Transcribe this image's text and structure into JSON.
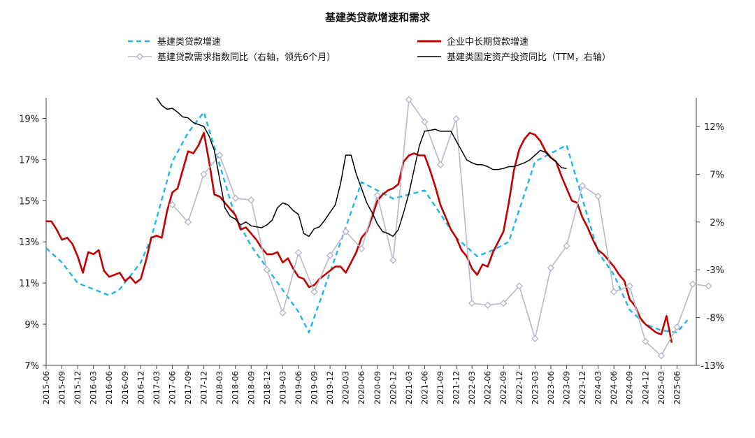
{
  "chart_data": {
    "type": "line",
    "title": "基建类贷款增速和需求",
    "y_left": {
      "ylim": [
        7,
        20
      ],
      "ticks": [
        "7%",
        "9%",
        "11%",
        "13%",
        "15%",
        "17%",
        "19%"
      ],
      "tick_values": [
        7,
        9,
        11,
        13,
        15,
        17,
        19
      ]
    },
    "y_right": {
      "ylim": [
        -13,
        15
      ],
      "ticks": [
        "-13%",
        "-8%",
        "-3%",
        "2%",
        "7%",
        "12%"
      ],
      "tick_values": [
        -13,
        -8,
        -3,
        2,
        7,
        12
      ]
    },
    "x_start": "2015-06",
    "x_ticks": [
      "2015-06",
      "2015-09",
      "2015-12",
      "2016-03",
      "2016-06",
      "2016-09",
      "2016-12",
      "2017-03",
      "2017-06",
      "2017-09",
      "2017-12",
      "2018-03",
      "2018-06",
      "2018-09",
      "2018-12",
      "2019-03",
      "2019-06",
      "2019-09",
      "2019-12",
      "2020-03",
      "2020-06",
      "2020-09",
      "2020-12",
      "2021-03",
      "2021-06",
      "2021-09",
      "2021-12",
      "2022-03",
      "2022-06",
      "2022-09",
      "2022-12",
      "2023-03",
      "2023-06",
      "2023-09",
      "2023-12",
      "2024-03",
      "2024-06",
      "2024-09",
      "2024-12",
      "2025-03",
      "2025-06"
    ],
    "legend_placement": "top",
    "grid": false,
    "series": [
      {
        "name": "基建类贷款增速",
        "axis": "left",
        "color": "#1fb6e6",
        "style": "dashed",
        "points": [
          [
            0,
            12.7
          ],
          [
            3,
            12.0
          ],
          [
            6,
            11.0
          ],
          [
            9,
            10.7
          ],
          [
            12,
            10.4
          ],
          [
            14,
            10.7
          ],
          [
            18,
            12.0
          ],
          [
            20,
            13.2
          ],
          [
            24,
            16.9
          ],
          [
            27,
            18.3
          ],
          [
            30,
            19.3
          ],
          [
            36,
            14.2
          ],
          [
            39,
            12.8
          ],
          [
            48,
            9.6
          ],
          [
            50,
            8.6
          ],
          [
            60,
            15.9
          ],
          [
            63,
            15.5
          ],
          [
            66,
            15.1
          ],
          [
            69,
            15.3
          ],
          [
            72,
            15.5
          ],
          [
            78,
            13.2
          ],
          [
            82,
            12.3
          ],
          [
            85,
            12.6
          ],
          [
            88,
            13.0
          ],
          [
            93,
            16.9
          ],
          [
            99,
            17.7
          ],
          [
            105,
            12.5
          ],
          [
            108,
            11.4
          ],
          [
            111,
            9.7
          ],
          [
            114,
            9.0
          ],
          [
            117,
            8.7
          ],
          [
            120,
            8.6
          ],
          [
            122,
            9.2
          ]
        ]
      },
      {
        "name": "企业中长期贷款增速",
        "axis": "left",
        "color": "#c00000",
        "style": "solid",
        "points": [
          [
            0,
            14.0
          ],
          [
            1,
            14.0
          ],
          [
            2,
            13.6
          ],
          [
            3,
            13.1
          ],
          [
            4,
            13.2
          ],
          [
            5,
            12.9
          ],
          [
            6,
            12.3
          ],
          [
            7,
            11.5
          ],
          [
            8,
            12.5
          ],
          [
            9,
            12.4
          ],
          [
            10,
            12.6
          ],
          [
            11,
            11.6
          ],
          [
            12,
            11.3
          ],
          [
            13,
            11.4
          ],
          [
            14,
            11.5
          ],
          [
            15,
            11.1
          ],
          [
            16,
            11.3
          ],
          [
            17,
            11.0
          ],
          [
            18,
            11.2
          ],
          [
            19,
            12.1
          ],
          [
            20,
            13.2
          ],
          [
            21,
            13.3
          ],
          [
            22,
            13.2
          ],
          [
            23,
            14.5
          ],
          [
            24,
            15.4
          ],
          [
            25,
            15.6
          ],
          [
            26,
            16.5
          ],
          [
            27,
            17.4
          ],
          [
            28,
            17.3
          ],
          [
            29,
            17.7
          ],
          [
            30,
            18.3
          ],
          [
            31,
            16.9
          ],
          [
            32,
            15.3
          ],
          [
            33,
            15.2
          ],
          [
            34,
            14.9
          ],
          [
            35,
            14.6
          ],
          [
            36,
            14.3
          ],
          [
            37,
            13.6
          ],
          [
            38,
            13.7
          ],
          [
            39,
            13.4
          ],
          [
            40,
            13.1
          ],
          [
            41,
            12.7
          ],
          [
            42,
            12.4
          ],
          [
            43,
            12.4
          ],
          [
            44,
            12.5
          ],
          [
            45,
            12.0
          ],
          [
            46,
            12.2
          ],
          [
            47,
            11.7
          ],
          [
            48,
            11.3
          ],
          [
            49,
            11.2
          ],
          [
            50,
            10.8
          ],
          [
            51,
            10.9
          ],
          [
            52,
            11.2
          ],
          [
            53,
            11.4
          ],
          [
            54,
            11.6
          ],
          [
            55,
            11.8
          ],
          [
            56,
            11.8
          ],
          [
            57,
            11.5
          ],
          [
            58,
            12.0
          ],
          [
            59,
            12.5
          ],
          [
            60,
            13.2
          ],
          [
            61,
            13.5
          ],
          [
            62,
            14.2
          ],
          [
            63,
            15.0
          ],
          [
            64,
            15.3
          ],
          [
            65,
            15.5
          ],
          [
            66,
            15.6
          ],
          [
            67,
            15.8
          ],
          [
            68,
            16.9
          ],
          [
            69,
            17.2
          ],
          [
            70,
            17.3
          ],
          [
            71,
            17.2
          ],
          [
            72,
            17.2
          ],
          [
            73,
            16.5
          ],
          [
            74,
            15.7
          ],
          [
            75,
            14.8
          ],
          [
            76,
            14.2
          ],
          [
            77,
            13.6
          ],
          [
            78,
            13.2
          ],
          [
            79,
            12.6
          ],
          [
            80,
            12.3
          ],
          [
            81,
            11.7
          ],
          [
            82,
            11.4
          ],
          [
            83,
            11.9
          ],
          [
            84,
            11.8
          ],
          [
            85,
            12.5
          ],
          [
            86,
            13.0
          ],
          [
            87,
            13.5
          ],
          [
            88,
            14.9
          ],
          [
            89,
            16.5
          ],
          [
            90,
            17.5
          ],
          [
            91,
            18.0
          ],
          [
            92,
            18.3
          ],
          [
            93,
            18.2
          ],
          [
            94,
            17.9
          ],
          [
            95,
            17.4
          ],
          [
            96,
            17.1
          ],
          [
            97,
            16.9
          ],
          [
            98,
            16.2
          ],
          [
            99,
            15.6
          ],
          [
            100,
            15.0
          ],
          [
            101,
            14.9
          ],
          [
            102,
            14.2
          ],
          [
            103,
            13.7
          ],
          [
            104,
            13.1
          ],
          [
            105,
            12.6
          ],
          [
            106,
            12.4
          ],
          [
            107,
            12.1
          ],
          [
            108,
            11.8
          ],
          [
            109,
            11.4
          ],
          [
            110,
            11.1
          ],
          [
            111,
            10.2
          ],
          [
            112,
            9.9
          ],
          [
            113,
            9.3
          ],
          [
            114,
            9.0
          ],
          [
            115,
            8.8
          ],
          [
            116,
            8.6
          ],
          [
            117,
            8.5
          ],
          [
            118,
            9.4
          ],
          [
            119,
            8.1
          ]
        ]
      },
      {
        "name": "基建贷款需求指数同比（右轴，领先6个月）",
        "axis": "right",
        "color": "#b8b8c8",
        "style": "solid-diamond",
        "points": [
          [
            24,
            3.8
          ],
          [
            27,
            2.0
          ],
          [
            30,
            7.0
          ],
          [
            33,
            9.0
          ],
          [
            36,
            4.5
          ],
          [
            39,
            4.3
          ],
          [
            42,
            -3.0
          ],
          [
            45,
            -7.5
          ],
          [
            48,
            -1.2
          ],
          [
            51,
            -5.3
          ],
          [
            54,
            -1.5
          ],
          [
            57,
            1.0
          ],
          [
            60,
            -0.8
          ],
          [
            63,
            4.8
          ],
          [
            66,
            -2.0
          ],
          [
            69,
            14.8
          ],
          [
            72,
            12.5
          ],
          [
            75,
            8.0
          ],
          [
            78,
            12.8
          ],
          [
            81,
            -6.5
          ],
          [
            84,
            -6.7
          ],
          [
            87,
            -6.5
          ],
          [
            90,
            -4.7
          ],
          [
            93,
            -10.2
          ],
          [
            96,
            -2.8
          ],
          [
            99,
            -0.5
          ],
          [
            102,
            5.8
          ],
          [
            105,
            4.7
          ],
          [
            108,
            -5.3
          ],
          [
            111,
            -4.7
          ],
          [
            114,
            -10.5
          ],
          [
            117,
            -12.0
          ],
          [
            120,
            -9.0
          ],
          [
            123,
            -4.5
          ],
          [
            126,
            -4.7
          ]
        ]
      },
      {
        "name": "基建类固定资产投资同比（TTM，右轴）",
        "axis": "right",
        "color": "#000000",
        "style": "solid",
        "points": [
          [
            21,
            15.0
          ],
          [
            22,
            14.2
          ],
          [
            23,
            13.8
          ],
          [
            24,
            13.9
          ],
          [
            25,
            13.5
          ],
          [
            26,
            13.0
          ],
          [
            27,
            12.9
          ],
          [
            28,
            12.4
          ],
          [
            29,
            12.2
          ],
          [
            30,
            12.0
          ],
          [
            31,
            11.0
          ],
          [
            32,
            9.5
          ],
          [
            33,
            6.5
          ],
          [
            34,
            3.5
          ],
          [
            35,
            2.6
          ],
          [
            36,
            2.3
          ],
          [
            37,
            1.7
          ],
          [
            38,
            2.0
          ],
          [
            39,
            1.6
          ],
          [
            40,
            1.5
          ],
          [
            41,
            1.4
          ],
          [
            42,
            1.7
          ],
          [
            43,
            2.2
          ],
          [
            44,
            3.5
          ],
          [
            45,
            4.0
          ],
          [
            46,
            3.8
          ],
          [
            47,
            3.2
          ],
          [
            48,
            2.8
          ],
          [
            49,
            0.8
          ],
          [
            50,
            0.5
          ],
          [
            51,
            1.3
          ],
          [
            52,
            1.5
          ],
          [
            53,
            2.2
          ],
          [
            54,
            3.0
          ],
          [
            55,
            3.8
          ],
          [
            56,
            6.0
          ],
          [
            57,
            9.0
          ],
          [
            58,
            9.0
          ],
          [
            59,
            7.0
          ],
          [
            60,
            5.5
          ],
          [
            61,
            4.0
          ],
          [
            62,
            3.0
          ],
          [
            63,
            1.8
          ],
          [
            64,
            1.0
          ],
          [
            65,
            0.8
          ],
          [
            66,
            0.5
          ],
          [
            67,
            1.2
          ],
          [
            68,
            3.0
          ],
          [
            69,
            5.0
          ],
          [
            70,
            7.5
          ],
          [
            71,
            10.0
          ],
          [
            72,
            11.5
          ],
          [
            73,
            11.6
          ],
          [
            74,
            11.7
          ],
          [
            75,
            11.5
          ],
          [
            76,
            11.5
          ],
          [
            77,
            11.5
          ],
          [
            78,
            10.5
          ],
          [
            79,
            9.5
          ],
          [
            80,
            8.5
          ],
          [
            81,
            8.2
          ],
          [
            82,
            8.0
          ],
          [
            83,
            8.0
          ],
          [
            84,
            7.8
          ],
          [
            85,
            7.5
          ],
          [
            86,
            7.5
          ],
          [
            87,
            7.6
          ],
          [
            88,
            7.8
          ],
          [
            89,
            7.8
          ],
          [
            90,
            8.0
          ],
          [
            91,
            8.2
          ],
          [
            92,
            8.5
          ],
          [
            93,
            9.0
          ],
          [
            94,
            9.5
          ],
          [
            95,
            9.3
          ],
          [
            96,
            8.7
          ],
          [
            97,
            8.3
          ],
          [
            98,
            7.7
          ],
          [
            99,
            7.6
          ]
        ]
      }
    ]
  }
}
